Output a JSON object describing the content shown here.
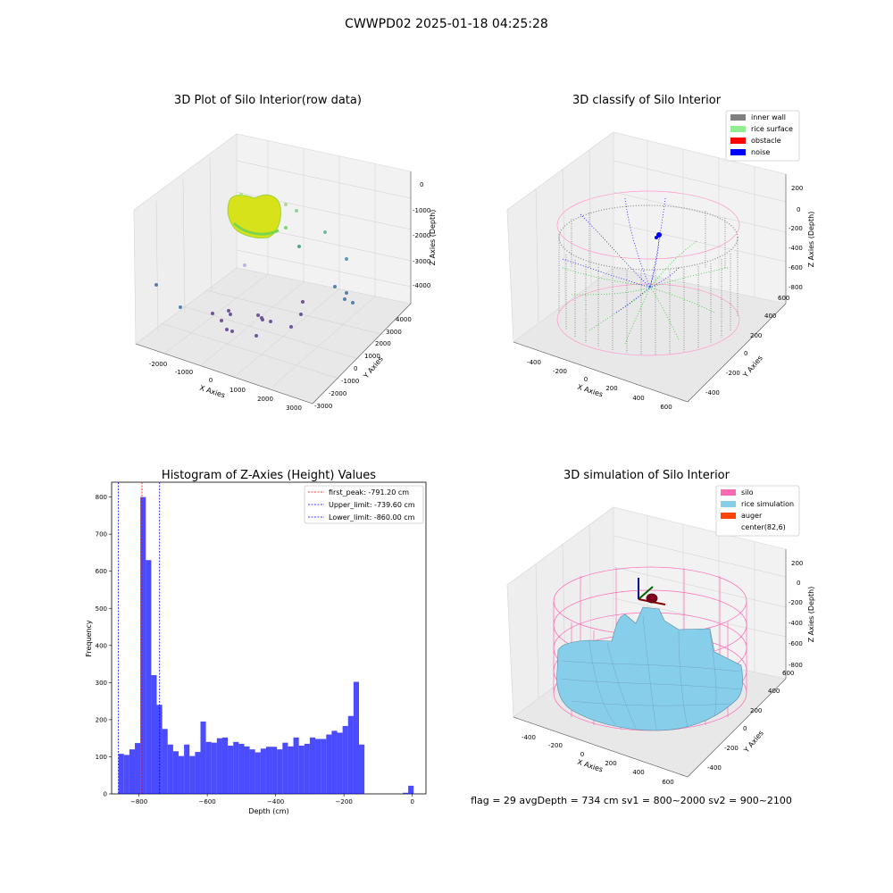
{
  "figure": {
    "suptitle": "CWWPD02 2025-01-18 04:25:28",
    "footer": "flag = 29  avgDepth = 734 cm  sv1 = 800~2000  sv2 = 900~2100"
  },
  "panels": {
    "raw": {
      "title": "3D Plot of Silo Interior(row data)",
      "xlabel": "X Axies",
      "ylabel": "Y Axies",
      "zlabel": "Z Axies (Depth)",
      "xticks": [
        "-2000",
        "-1000",
        "0",
        "1000",
        "2000",
        "3000"
      ],
      "yticks": [
        "-3000",
        "-2000",
        "-1000",
        "0",
        "1000",
        "2000",
        "3000",
        "4000"
      ],
      "zticks": [
        "0",
        "-1000",
        "-2000",
        "-3000",
        "-4000"
      ]
    },
    "classify": {
      "title": "3D classify of Silo Interior",
      "xlabel": "X Axies",
      "ylabel": "Y Axies",
      "zlabel": "Z Axies (Depth)",
      "xticks": [
        "-400",
        "-200",
        "0",
        "200",
        "400",
        "600"
      ],
      "yticks": [
        "-400",
        "-200",
        "0",
        "200",
        "400",
        "600"
      ],
      "zticks": [
        "200",
        "0",
        "-200",
        "-400",
        "-600",
        "-800"
      ],
      "legend": [
        {
          "label": "inner wall",
          "color": "#808080"
        },
        {
          "label": "rice surface",
          "color": "#90ee90"
        },
        {
          "label": "obstacle",
          "color": "#ff0000"
        },
        {
          "label": "noise",
          "color": "#0000ff"
        }
      ]
    },
    "simulation": {
      "title": "3D simulation of Silo Interior",
      "xlabel": "X Axies",
      "ylabel": "Y Axies",
      "zlabel": "Z Axies (Depth)",
      "xticks": [
        "-400",
        "-200",
        "0",
        "200",
        "400",
        "600"
      ],
      "yticks": [
        "-400",
        "-200",
        "0",
        "200",
        "400",
        "600"
      ],
      "zticks": [
        "200",
        "0",
        "-200",
        "-400",
        "-600",
        "-800"
      ],
      "legend": [
        {
          "label": "silo",
          "color": "#ff69b4"
        },
        {
          "label": "rice simulation",
          "color": "#87ceeb"
        },
        {
          "label": "auger",
          "color": "#ff4500"
        },
        {
          "label": "center(82,6)",
          "color": ""
        }
      ]
    }
  },
  "chart_data": {
    "type": "bar",
    "title": "Histogram of Z-Axies (Height) Values",
    "xlabel": "Depth (cm)",
    "ylabel": "Frequency",
    "xlim": [
      -880,
      40
    ],
    "ylim": [
      0,
      840
    ],
    "xticks": [
      -800,
      -600,
      -400,
      -200,
      0
    ],
    "yticks": [
      0,
      100,
      200,
      300,
      400,
      500,
      600,
      700,
      800
    ],
    "bar_color": "#0000ff",
    "bin_edges": [
      -860,
      -844,
      -828,
      -812,
      -796,
      -780,
      -764,
      -748,
      -732,
      -716,
      -700,
      -684,
      -668,
      -652,
      -636,
      -620,
      -604,
      -588,
      -572,
      -556,
      -540,
      -524,
      -508,
      -492,
      -476,
      -460,
      -444,
      -428,
      -412,
      -396,
      -380,
      -364,
      -348,
      -332,
      -316,
      -300,
      -284,
      -268,
      -252,
      -236,
      -220,
      -204,
      -188,
      -172,
      -156,
      -140,
      -124,
      -108,
      -92,
      -76,
      -60,
      -44,
      -28,
      -12,
      4
    ],
    "values": [
      108,
      105,
      120,
      137,
      800,
      630,
      320,
      240,
      175,
      133,
      115,
      102,
      133,
      102,
      113,
      195,
      140,
      138,
      150,
      152,
      130,
      140,
      135,
      128,
      120,
      112,
      122,
      127,
      127,
      120,
      138,
      128,
      152,
      130,
      135,
      152,
      148,
      148,
      160,
      170,
      165,
      183,
      210,
      302,
      133,
      0,
      0,
      0,
      0,
      0,
      0,
      0,
      3,
      22
    ],
    "vlines": [
      {
        "label": "first_peak: -791.20 cm",
        "x": -791.2,
        "color": "#ff0000"
      },
      {
        "label": "Upper_limit: -739.60 cm",
        "x": -739.6,
        "color": "#0000ff"
      },
      {
        "label": "Lower_limit: -860.00 cm",
        "x": -860.0,
        "color": "#0000ff"
      }
    ],
    "legend_position": "top-right"
  }
}
